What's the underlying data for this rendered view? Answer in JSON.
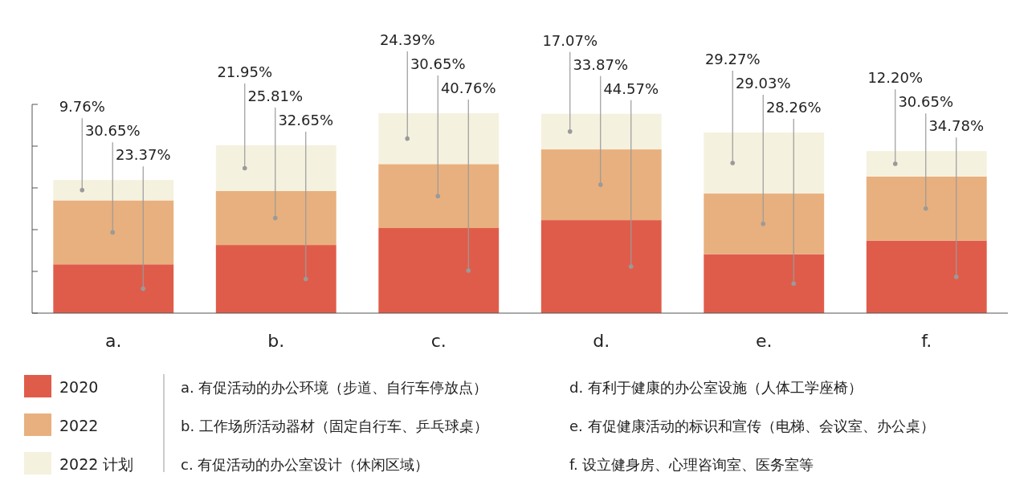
{
  "chart_data": {
    "type": "bar",
    "stacked": true,
    "categories": [
      "a.",
      "b.",
      "c.",
      "d.",
      "e.",
      "f."
    ],
    "series": [
      {
        "name": "2020",
        "color": "#e05c4a",
        "values": [
          23.37,
          32.65,
          40.76,
          44.57,
          28.26,
          34.78
        ],
        "value_labels": [
          "23.37%",
          "32.65%",
          "40.76%",
          "44.57%",
          "28.26%",
          "34.78%"
        ]
      },
      {
        "name": "2022",
        "color": "#e8b07e",
        "values": [
          30.65,
          25.81,
          30.65,
          33.87,
          29.03,
          30.65
        ],
        "value_labels": [
          "30.65%",
          "25.81%",
          "30.65%",
          "33.87%",
          "29.03%",
          "30.65%"
        ]
      },
      {
        "name": "2022 计划",
        "color": "#f5f1df",
        "values": [
          9.76,
          21.95,
          24.39,
          17.07,
          29.27,
          12.2
        ],
        "value_labels": [
          "9.76%",
          "21.95%",
          "24.39%",
          "17.07%",
          "29.27%",
          "12.20%"
        ]
      }
    ],
    "ylim": [
      0,
      100
    ],
    "yticks": [
      {
        "value": 0,
        "label": null
      },
      {
        "value": 20,
        "label": null
      },
      {
        "value": 40,
        "label": null
      },
      {
        "value": 60,
        "label": null
      },
      {
        "value": 80,
        "label": null
      },
      {
        "value": 100,
        "label": null
      }
    ],
    "tick_labels": "x",
    "legend": "bottom left",
    "annotations": [
      "a.  有促活动的办公环境（步道、自行车停放点）",
      "b. 工作场所活动器材（固定自行车、乒乓球桌）",
      "c. 有促活动的办公室设计（休闲区域）",
      "d. 有利于健康的办公室设施（人体工学座椅）",
      "e. 有促健康活动的标识和宣传（电梯、会议室、办公桌）",
      "f. 设立健身房、心理咨询室、医务室等"
    ]
  }
}
